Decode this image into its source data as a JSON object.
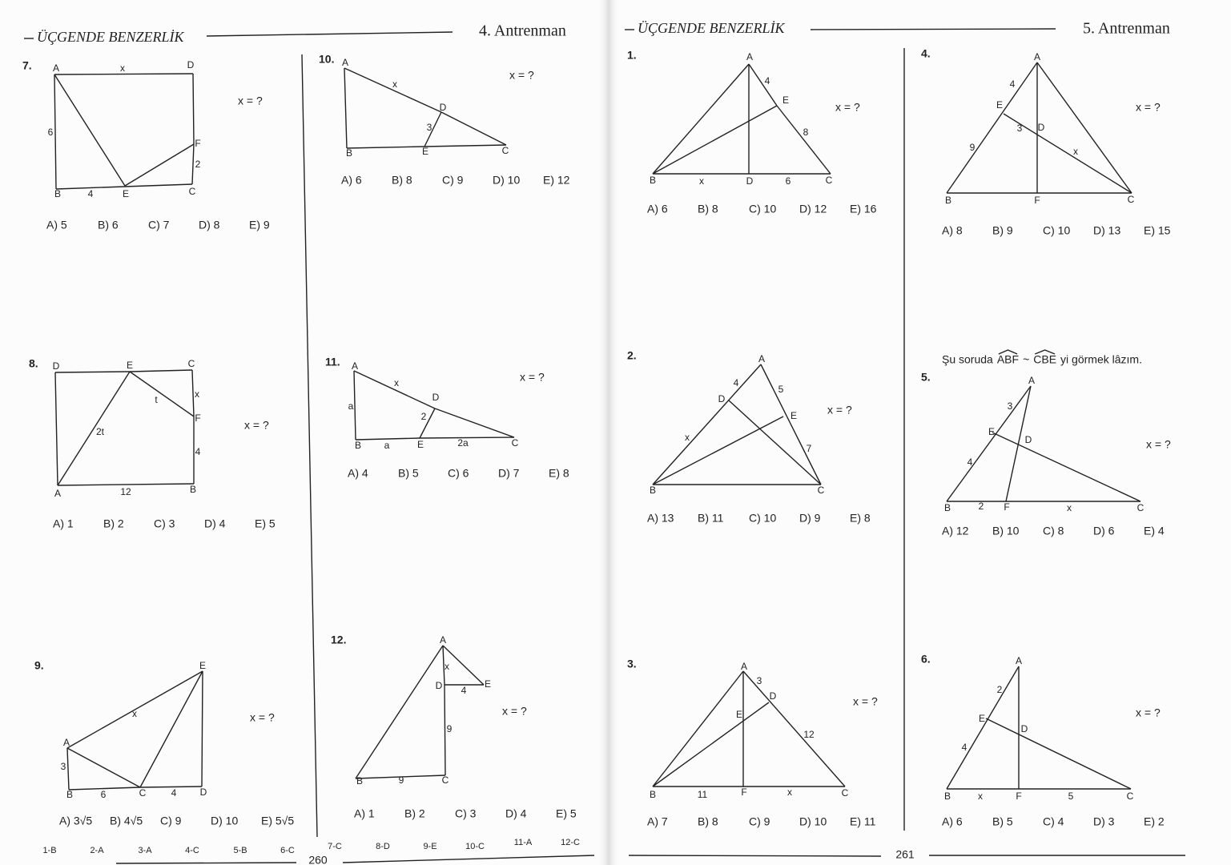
{
  "left_page": {
    "header": {
      "title": "ÜÇGENDE BENZERLİK",
      "subtitle": "4. Antrenman"
    },
    "problems": [
      {
        "number": "7.",
        "question": "x = ?",
        "labels": [
          "A",
          "x",
          "D",
          "6",
          "F",
          "2",
          "B",
          "4",
          "E",
          "C"
        ],
        "choices": [
          "A) 5",
          "B) 6",
          "C) 7",
          "D) 8",
          "E) 9"
        ]
      },
      {
        "number": "8.",
        "question": "x = ?",
        "labels": [
          "D",
          "E",
          "C",
          "x",
          "t",
          "F",
          "2t",
          "4",
          "A",
          "12",
          "B"
        ],
        "choices": [
          "A) 1",
          "B) 2",
          "C) 3",
          "D) 4",
          "E) 5"
        ]
      },
      {
        "number": "9.",
        "question": "x = ?",
        "labels": [
          "E",
          "x",
          "A",
          "3",
          "B",
          "6",
          "C",
          "4",
          "D"
        ],
        "choices": [
          "A) 3√5",
          "B) 4√5",
          "C) 9",
          "D) 10",
          "E) 5√5"
        ]
      },
      {
        "number": "10.",
        "question": "x = ?",
        "labels": [
          "A",
          "x",
          "D",
          "3",
          "B",
          "E",
          "C"
        ],
        "choices": [
          "A) 6",
          "B) 8",
          "C) 9",
          "D) 10",
          "E) 12"
        ]
      },
      {
        "number": "11.",
        "question": "x = ?",
        "labels": [
          "A",
          "x",
          "D",
          "a",
          "2",
          "B",
          "a",
          "E",
          "2a",
          "C"
        ],
        "choices": [
          "A) 4",
          "B) 5",
          "C) 6",
          "D) 7",
          "E) 8"
        ]
      },
      {
        "number": "12.",
        "question": "x = ?",
        "labels": [
          "A",
          "x",
          "D",
          "E",
          "4",
          "9",
          "B",
          "9",
          "C"
        ],
        "choices": [
          "A) 1",
          "B) 2",
          "C) 3",
          "D) 4",
          "E) 5"
        ]
      }
    ],
    "answer_key": [
      "1-B",
      "2-A",
      "3-A",
      "4-C",
      "5-B",
      "6-C",
      "7-C",
      "8-D",
      "9-E",
      "10-C",
      "11-A",
      "12-C"
    ],
    "page_number": "260"
  },
  "right_page": {
    "header": {
      "title": "ÜÇGENDE BENZERLİK",
      "subtitle": "5. Antrenman"
    },
    "note": {
      "before": "Şu soruda",
      "angle1": "ABF",
      "between": "~",
      "angle2": "CBE",
      "after": "yi görmek lâzım."
    },
    "problems": [
      {
        "number": "1.",
        "question": "x = ?",
        "labels": [
          "A",
          "4",
          "E",
          "8",
          "B",
          "x",
          "D",
          "6",
          "C"
        ],
        "choices": [
          "A) 6",
          "B) 8",
          "C) 10",
          "D) 12",
          "E) 16"
        ]
      },
      {
        "number": "2.",
        "question": "x = ?",
        "labels": [
          "A",
          "4",
          "5",
          "D",
          "E",
          "x",
          "7",
          "B",
          "C"
        ],
        "choices": [
          "A) 13",
          "B) 11",
          "C) 10",
          "D) 9",
          "E) 8"
        ]
      },
      {
        "number": "3.",
        "question": "x = ?",
        "labels": [
          "A",
          "3",
          "D",
          "E",
          "12",
          "B",
          "11",
          "F",
          "x",
          "C"
        ],
        "choices": [
          "A) 7",
          "B) 8",
          "C) 9",
          "D) 10",
          "E) 11"
        ]
      },
      {
        "number": "4.",
        "question": "x = ?",
        "labels": [
          "A",
          "4",
          "E",
          "3",
          "D",
          "9",
          "x",
          "B",
          "F",
          "C"
        ],
        "choices": [
          "A) 8",
          "B) 9",
          "C) 10",
          "D) 13",
          "E) 15"
        ]
      },
      {
        "number": "5.",
        "question": "x = ?",
        "labels": [
          "A",
          "3",
          "E",
          "D",
          "4",
          "B",
          "2",
          "F",
          "x",
          "C"
        ],
        "choices": [
          "A) 12",
          "B) 10",
          "C) 8",
          "D) 6",
          "E) 4"
        ]
      },
      {
        "number": "6.",
        "question": "x = ?",
        "labels": [
          "A",
          "2",
          "E",
          "D",
          "4",
          "B",
          "x",
          "F",
          "5",
          "C"
        ],
        "choices": [
          "A) 6",
          "B) 5",
          "C) 4",
          "D) 3",
          "E) 2"
        ]
      }
    ],
    "page_number": "261"
  }
}
